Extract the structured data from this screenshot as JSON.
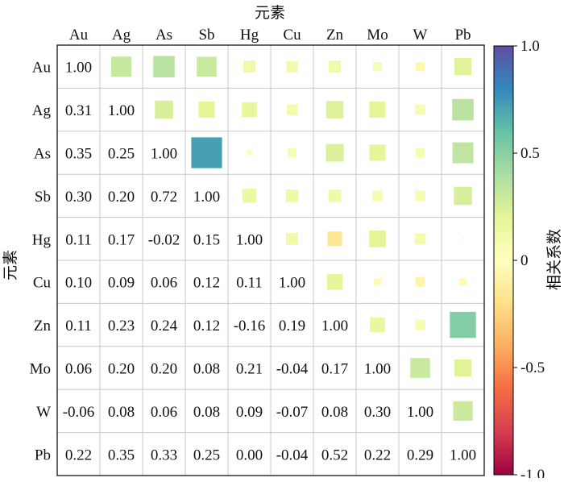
{
  "chart_data": {
    "type": "heatmap",
    "title": "",
    "xlabel": "元素",
    "ylabel": "元素",
    "x_categories": [
      "Au",
      "Ag",
      "As",
      "Sb",
      "Hg",
      "Cu",
      "Zn",
      "Mo",
      "W",
      "Pb"
    ],
    "y_categories": [
      "Au",
      "Ag",
      "As",
      "Sb",
      "Hg",
      "Cu",
      "Zn",
      "Mo",
      "W",
      "Pb"
    ],
    "values": [
      [
        1.0,
        0.31,
        0.35,
        0.3,
        0.11,
        0.1,
        0.11,
        0.06,
        -0.06,
        0.22
      ],
      [
        0.31,
        1.0,
        0.25,
        0.2,
        0.17,
        0.09,
        0.23,
        0.2,
        0.08,
        0.35
      ],
      [
        0.35,
        0.25,
        1.0,
        0.72,
        -0.02,
        0.06,
        0.24,
        0.2,
        0.06,
        0.33
      ],
      [
        0.3,
        0.2,
        0.72,
        1.0,
        0.15,
        0.12,
        0.12,
        0.08,
        0.08,
        0.25
      ],
      [
        0.11,
        0.17,
        -0.02,
        0.15,
        1.0,
        0.11,
        -0.16,
        0.21,
        0.09,
        0.0
      ],
      [
        0.1,
        0.09,
        0.06,
        0.12,
        0.11,
        1.0,
        0.19,
        -0.04,
        -0.07,
        -0.04
      ],
      [
        0.11,
        0.23,
        0.24,
        0.12,
        -0.16,
        0.19,
        1.0,
        0.17,
        0.08,
        0.52
      ],
      [
        0.06,
        0.2,
        0.2,
        0.08,
        0.21,
        -0.04,
        0.17,
        1.0,
        0.3,
        0.22
      ],
      [
        -0.06,
        0.08,
        0.06,
        0.08,
        0.09,
        -0.07,
        0.08,
        0.3,
        1.0,
        0.29
      ],
      [
        0.22,
        0.35,
        0.33,
        0.25,
        0.0,
        -0.04,
        0.52,
        0.22,
        0.29,
        1.0
      ]
    ],
    "layout_note": "lower triangle and diagonal show numbers; upper triangle shows color squares sized by |r|",
    "colorbar": {
      "label": "相关系数",
      "range": [
        -1.0,
        1.0
      ],
      "ticks": [
        1.0,
        0.5,
        0,
        -0.5,
        -1.0
      ],
      "tick_labels": [
        "1.0",
        "0.5",
        "0",
        "-0.5",
        "-1.0"
      ],
      "colormap": "Spectral",
      "colors": [
        "#9e0142",
        "#d53e4f",
        "#f46d43",
        "#fdae61",
        "#fee08b",
        "#ffffbf",
        "#e6f598",
        "#abdda4",
        "#66c2a5",
        "#3288bd",
        "#5e4fa2"
      ]
    },
    "grid": true,
    "colors": {
      "grid_line": "#c8c8c8",
      "border": "#000000"
    }
  }
}
